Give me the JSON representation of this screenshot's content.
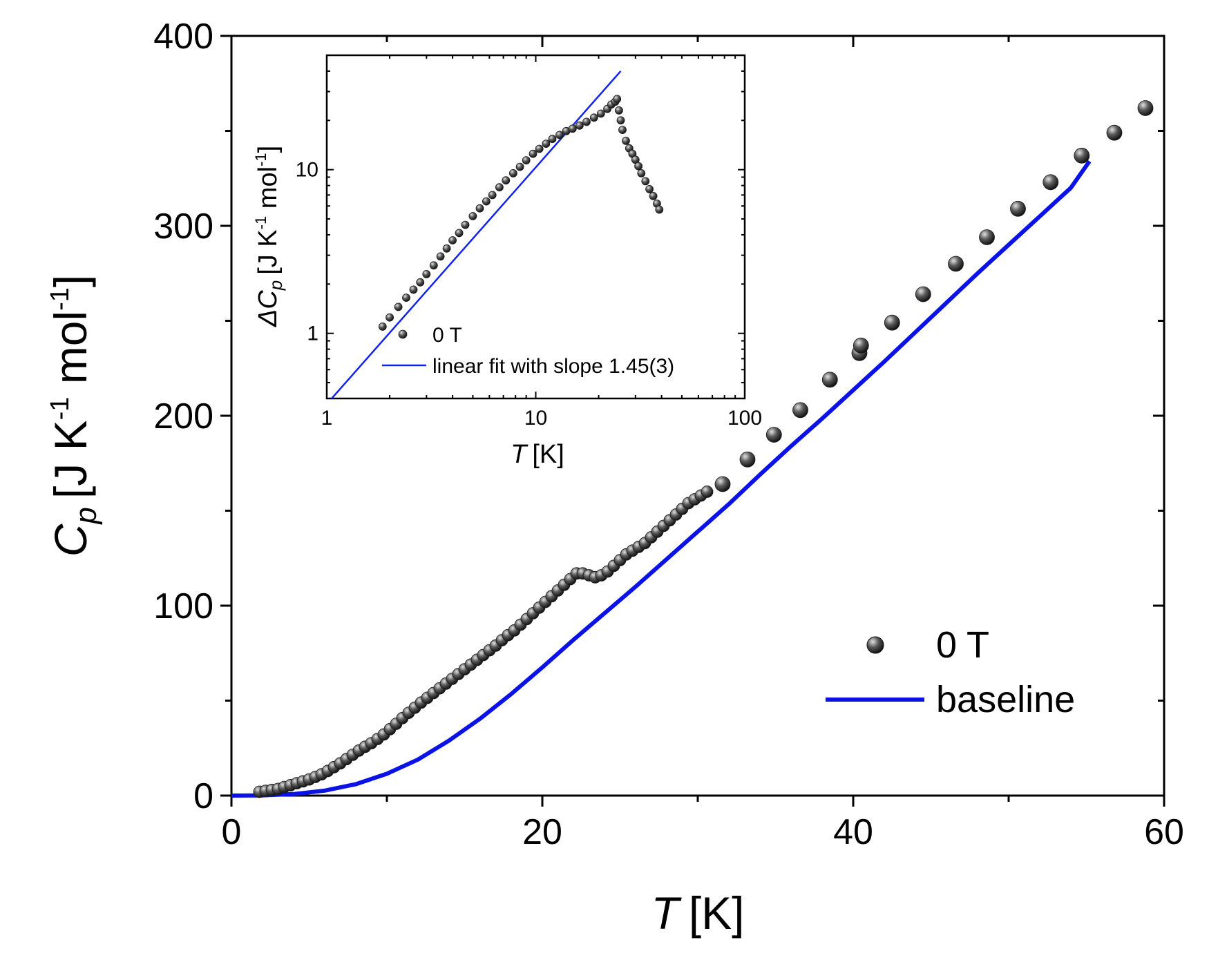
{
  "chart_data": [
    {
      "id": "main",
      "type": "scatter",
      "title": "",
      "xlabel": {
        "symbol": "T",
        "unit": "[K]"
      },
      "ylabel": {
        "symbol": "C",
        "subscript": "p",
        "unit_prefix": "[J K",
        "exp1": "-1",
        "unit_mid": " mol",
        "exp2": "-1",
        "unit_suffix": "]"
      },
      "xlim": [
        0,
        60
      ],
      "ylim": [
        0,
        400
      ],
      "xticks": [
        0,
        20,
        40,
        60
      ],
      "yticks": [
        0,
        100,
        200,
        300,
        400
      ],
      "xtick_labels": [
        "0",
        "20",
        "40",
        "60"
      ],
      "ytick_labels": [
        "0",
        "100",
        "200",
        "300",
        "400"
      ],
      "legend": {
        "placement": "bottom-right",
        "entries": [
          "0 T",
          "baseline"
        ]
      },
      "series": [
        {
          "name": "0 T",
          "kind": "markers",
          "x": [
            1.8,
            2.2,
            2.6,
            3.0,
            3.4,
            3.8,
            4.2,
            4.6,
            5.0,
            5.4,
            5.8,
            6.2,
            6.6,
            7.0,
            7.4,
            7.8,
            8.2,
            8.6,
            9.0,
            9.4,
            9.8,
            10.2,
            10.6,
            11.0,
            11.4,
            11.8,
            12.2,
            12.6,
            13.0,
            13.4,
            13.8,
            14.2,
            14.6,
            15.0,
            15.4,
            15.8,
            16.2,
            16.6,
            17.0,
            17.4,
            17.8,
            18.2,
            18.6,
            19.0,
            19.4,
            19.8,
            20.2,
            20.6,
            21.0,
            21.4,
            21.8,
            22.2,
            22.6,
            23.0,
            23.4,
            23.8,
            24.2,
            24.6,
            25.0,
            25.4,
            25.8,
            26.2,
            26.6,
            27.0,
            27.4,
            27.8,
            28.2,
            28.6,
            29.0,
            29.4,
            29.8,
            30.2,
            30.6,
            31.6,
            33.2,
            34.9,
            36.6,
            38.5,
            40.4,
            40.5,
            42.5,
            44.5,
            46.6,
            48.6,
            50.6,
            52.7,
            54.7,
            56.8,
            58.8
          ],
          "y": [
            2,
            2.5,
            3,
            3.5,
            4.5,
            5.5,
            6.5,
            7.5,
            8.5,
            9.8,
            11.2,
            13,
            15,
            17,
            19.2,
            21.5,
            23.7,
            25.7,
            27.6,
            29.8,
            32.2,
            35,
            37.8,
            40.8,
            43.6,
            46.3,
            49,
            51.5,
            54,
            56.5,
            59,
            61.5,
            64,
            66.5,
            69,
            71.5,
            74,
            76.5,
            79,
            81.8,
            84.5,
            87,
            90,
            93,
            96,
            99,
            102,
            105,
            108,
            111,
            114,
            117,
            117,
            116,
            115,
            116,
            118,
            121,
            124,
            127,
            129,
            131,
            133,
            136,
            139,
            142,
            145,
            148,
            151,
            154,
            156,
            158,
            160,
            164,
            177,
            190,
            203,
            219,
            233,
            237,
            249,
            264,
            280,
            294,
            309,
            323,
            337,
            349,
            362
          ]
        },
        {
          "name": "baseline",
          "kind": "line",
          "x": [
            0,
            2,
            4,
            6,
            8,
            10,
            12,
            14,
            16,
            18,
            20,
            22,
            24,
            26,
            28,
            30,
            32,
            34,
            36,
            38,
            40,
            42,
            44,
            46,
            48,
            50,
            52,
            54,
            55.2
          ],
          "y": [
            0,
            0.1,
            0.8,
            2.6,
            6,
            11.5,
            19,
            29,
            40.5,
            53.5,
            67.5,
            82,
            96,
            110,
            124.5,
            139,
            153.5,
            169,
            184,
            198.5,
            213.5,
            228.5,
            244,
            259.5,
            275,
            290,
            305,
            320,
            334
          ]
        }
      ]
    },
    {
      "id": "inset",
      "type": "scatter",
      "title": "",
      "xscale": "log",
      "yscale": "log",
      "xlabel": {
        "symbol": "T",
        "unit": "[K]"
      },
      "ylabel": {
        "symbol": "ΔC",
        "subscript": "p",
        "unit_prefix": "[J K",
        "exp1": "-1",
        "unit_mid": " mol",
        "exp2": "-1",
        "unit_suffix": "]"
      },
      "xlim": [
        1,
        100
      ],
      "ylim": [
        0.4,
        50
      ],
      "xticks": [
        1,
        10,
        100
      ],
      "yticks": [
        1,
        10
      ],
      "xtick_labels": [
        "1",
        "10",
        "100"
      ],
      "ytick_labels": [
        "1",
        "10"
      ],
      "legend": {
        "placement": "bottom-left",
        "entries": [
          "0 T",
          "linear fit with slope 1.45(3)"
        ]
      },
      "series": [
        {
          "name": "0 T",
          "kind": "markers",
          "x": [
            1.85,
            2.0,
            2.2,
            2.4,
            2.6,
            2.8,
            3.0,
            3.25,
            3.5,
            3.75,
            4.0,
            4.3,
            4.6,
            5.0,
            5.4,
            5.8,
            6.2,
            6.7,
            7.2,
            7.8,
            8.4,
            9.0,
            9.7,
            10.4,
            11.2,
            12.0,
            13.0,
            14.0,
            15.0,
            16.2,
            17.5,
            19.0,
            20.5,
            22.0,
            23.0,
            24.0,
            24.5,
            25.0,
            25.5,
            26.0,
            27.0,
            28.0,
            29.0,
            30.0,
            31.0,
            32.0,
            33.5,
            35.0,
            36.5,
            38.0,
            39.0
          ],
          "y": [
            1.1,
            1.25,
            1.45,
            1.65,
            1.85,
            2.05,
            2.3,
            2.6,
            2.95,
            3.3,
            3.7,
            4.1,
            4.6,
            5.2,
            5.8,
            6.4,
            7.0,
            7.8,
            8.6,
            9.5,
            10.4,
            11.4,
            12.5,
            13.4,
            14.4,
            15.4,
            16.3,
            17.2,
            17.8,
            18.6,
            19.6,
            20.8,
            22.0,
            23.5,
            25,
            26,
            27,
            23,
            20,
            17.5,
            15,
            13.5,
            12.5,
            11.5,
            10.5,
            9.5,
            8.5,
            7.6,
            6.9,
            6.2,
            5.7
          ]
        },
        {
          "name": "linear fit with slope 1.45(3)",
          "kind": "line",
          "x": [
            1,
            25.5
          ],
          "y": [
            0.37,
            40
          ]
        }
      ]
    }
  ]
}
